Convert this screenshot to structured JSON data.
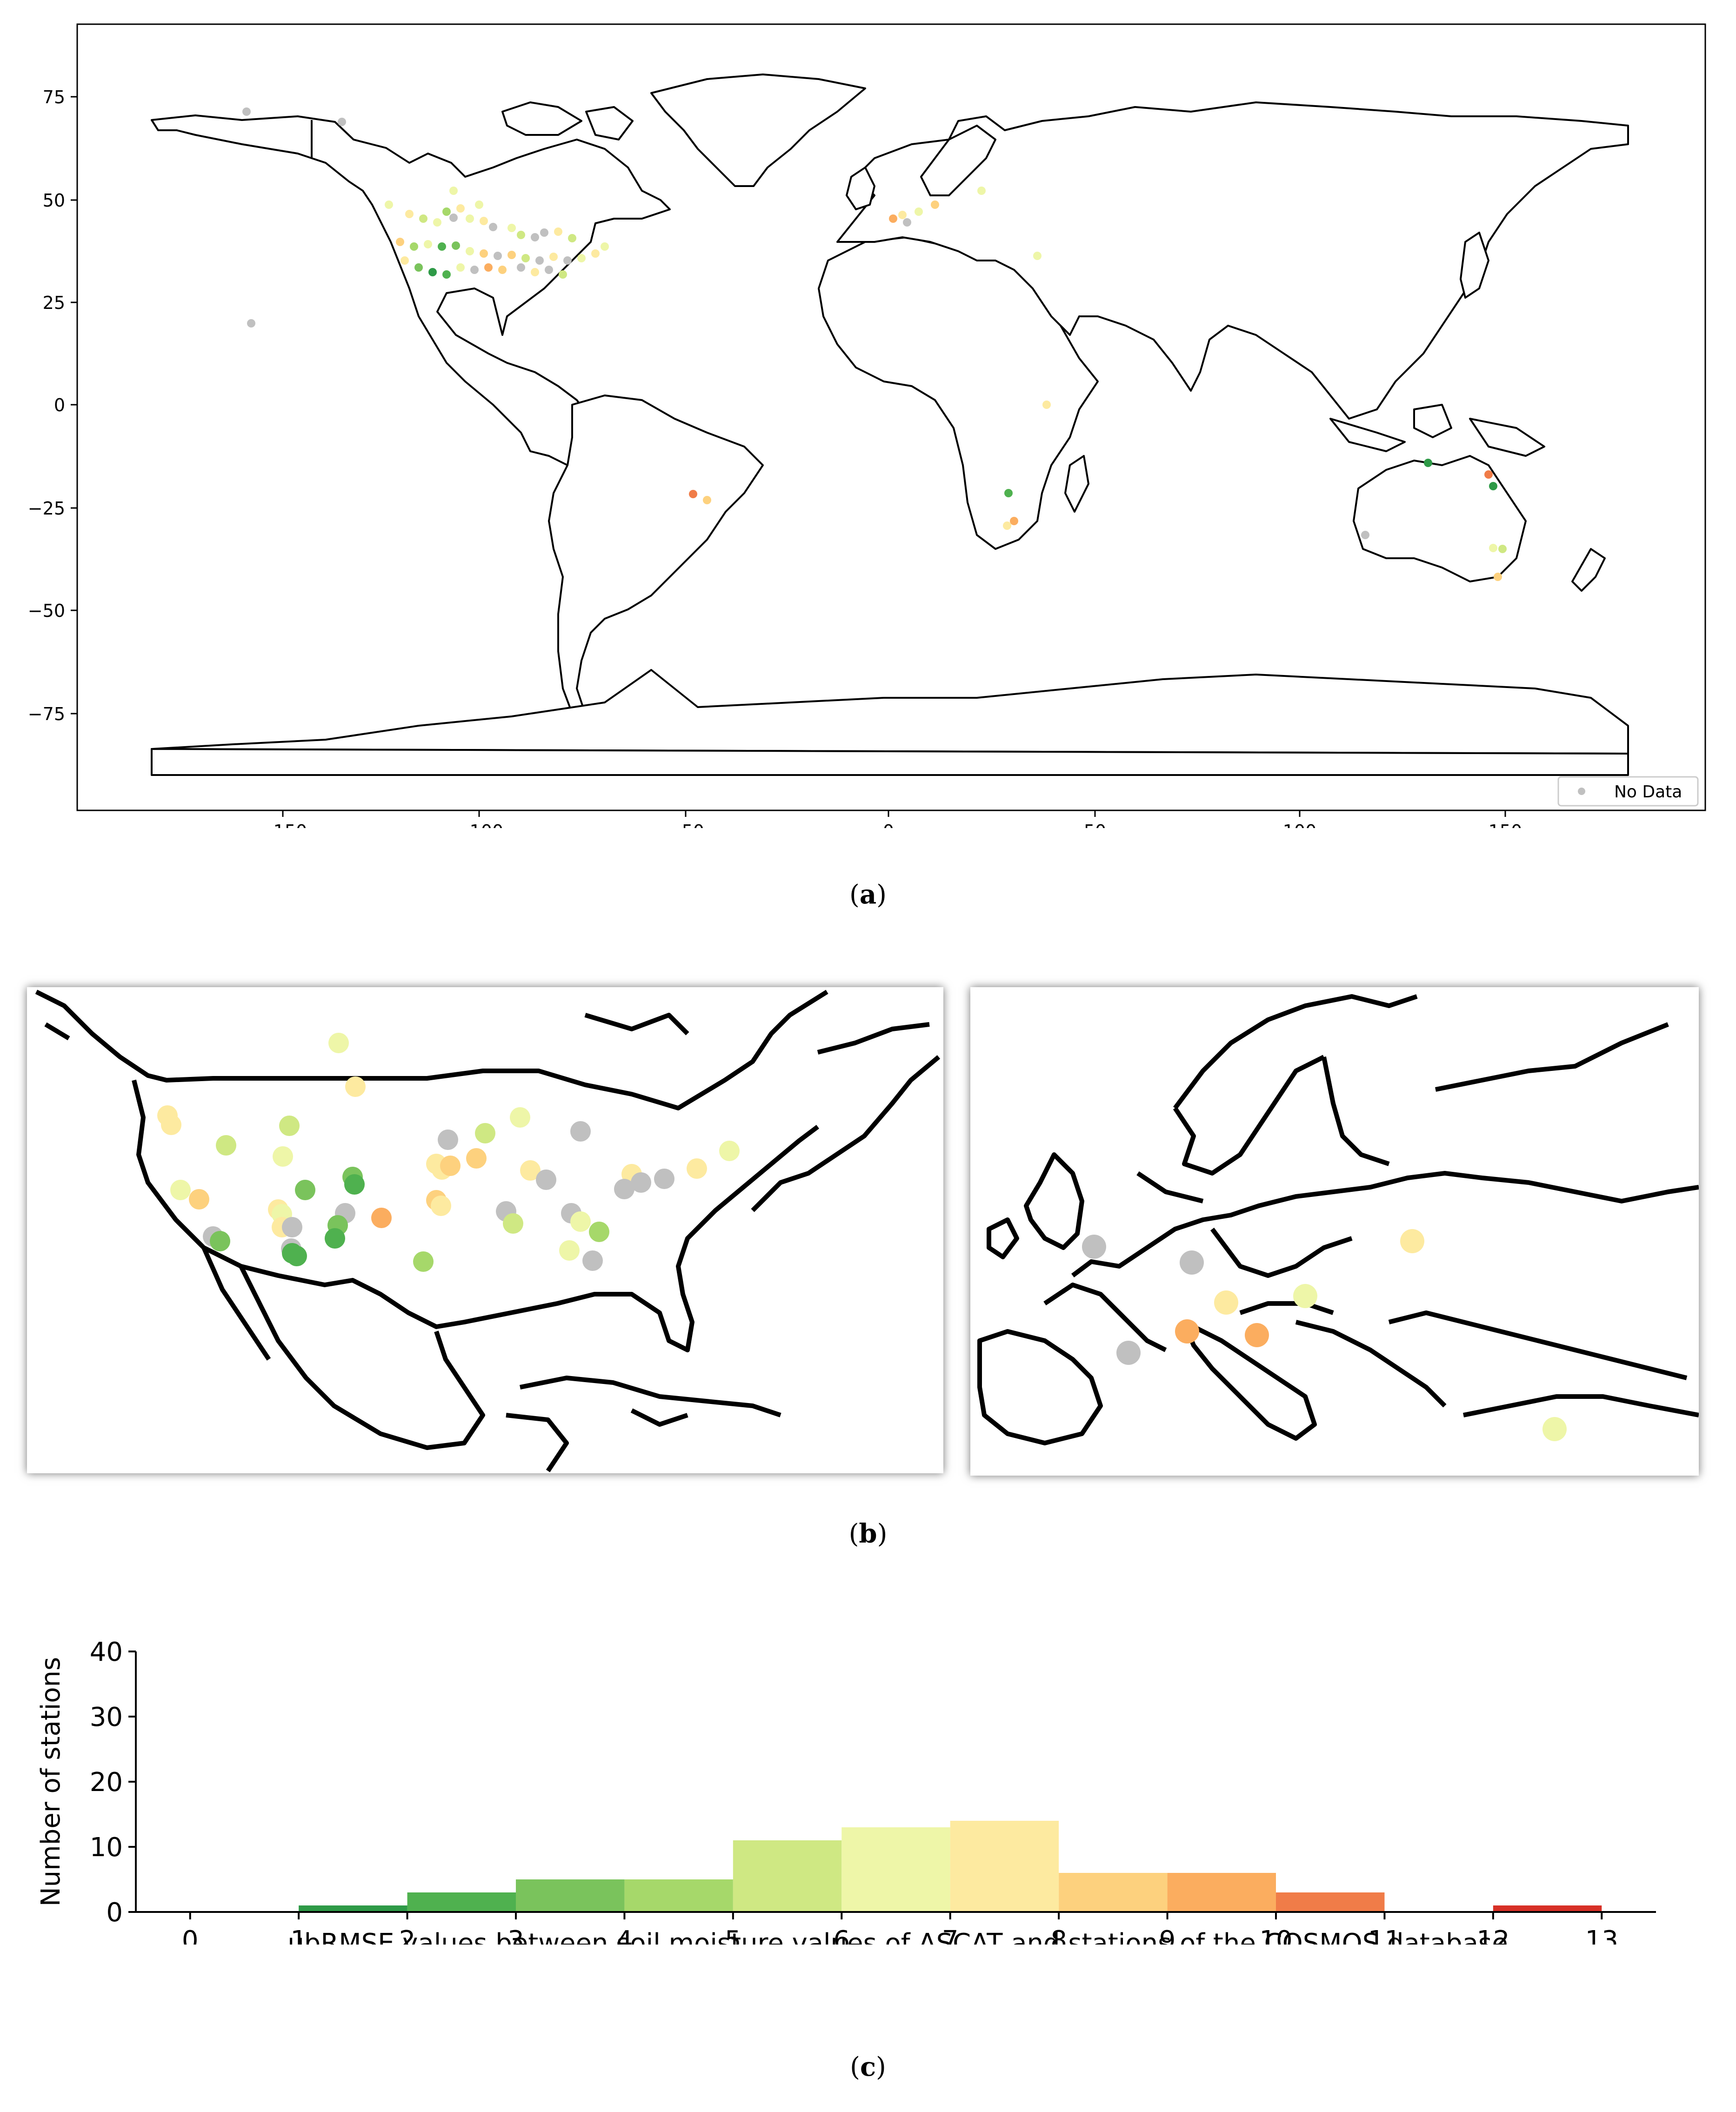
{
  "figure": {
    "captions": {
      "a_prefix": "(",
      "a_letter": "a",
      "a_suffix": ")",
      "b_prefix": "(",
      "b_letter": "b",
      "b_suffix": ")",
      "c_prefix": "(",
      "c_letter": "c",
      "c_suffix": ")"
    }
  },
  "map_a": {
    "x_ticks": [
      "−150",
      "−100",
      "−50",
      "0",
      "50",
      "100",
      "150"
    ],
    "y_ticks": [
      "75",
      "50",
      "25",
      "0",
      "−25",
      "−50",
      "−75"
    ],
    "legend_label": "No Data",
    "no_data_color": "#c0c0c0"
  },
  "colors": {
    "bin1": "#2e9a47",
    "bin2": "#4fb14f",
    "bin3": "#7ac35c",
    "bin4": "#a6d86a",
    "bin5": "#cfe883",
    "bin6": "#eef6a8",
    "bin7": "#fdeaa0",
    "bin8": "#fdd17e",
    "bin9": "#fbad5f",
    "bin10": "#f07c48",
    "bin12": "#d73027"
  },
  "chart_data": {
    "type": "bar",
    "xlabel": "ubRMSE values between soil moisture values of ASCAT and stations of the COSMOS database",
    "ylabel": "Number of stations",
    "ylim": [
      0,
      40
    ],
    "xlim": [
      -0.5,
      13.5
    ],
    "x_ticks": [
      "0",
      "1",
      "2",
      "3",
      "4",
      "5",
      "6",
      "7",
      "8",
      "9",
      "10",
      "11",
      "12",
      "13"
    ],
    "y_ticks": [
      "0",
      "10",
      "20",
      "30",
      "40"
    ],
    "bins": [
      {
        "from": 1,
        "to": 2,
        "count": 1,
        "color": "#2e9a47"
      },
      {
        "from": 2,
        "to": 3,
        "count": 3,
        "color": "#4fb14f"
      },
      {
        "from": 3,
        "to": 4,
        "count": 5,
        "color": "#7ac35c"
      },
      {
        "from": 4,
        "to": 5,
        "count": 5,
        "color": "#a6d86a"
      },
      {
        "from": 5,
        "to": 6,
        "count": 11,
        "color": "#cfe883"
      },
      {
        "from": 6,
        "to": 7,
        "count": 13,
        "color": "#eef6a8"
      },
      {
        "from": 7,
        "to": 8,
        "count": 14,
        "color": "#fdeaa0"
      },
      {
        "from": 8,
        "to": 9,
        "count": 6,
        "color": "#fdd17e"
      },
      {
        "from": 9,
        "to": 10,
        "count": 6,
        "color": "#fbad5f"
      },
      {
        "from": 10,
        "to": 11,
        "count": 3,
        "color": "#f07c48"
      },
      {
        "from": 12,
        "to": 13,
        "count": 1,
        "color": "#d73027"
      }
    ]
  }
}
